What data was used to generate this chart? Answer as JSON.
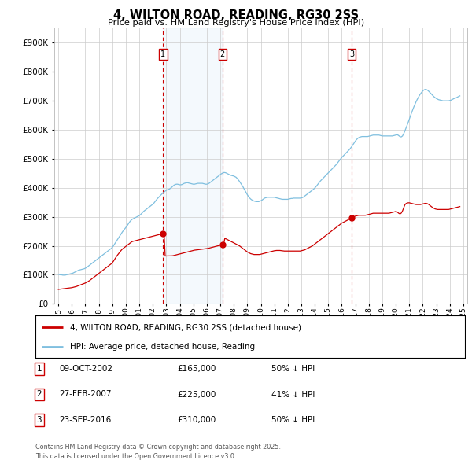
{
  "title": "4, WILTON ROAD, READING, RG30 2SS",
  "subtitle": "Price paid vs. HM Land Registry's House Price Index (HPI)",
  "hpi_color": "#7fbfdf",
  "hpi_fill_color": "#ddeeff",
  "price_color": "#cc0000",
  "vline_color": "#cc0000",
  "ylim": [
    0,
    950000
  ],
  "yticks": [
    0,
    100000,
    200000,
    300000,
    400000,
    500000,
    600000,
    700000,
    800000,
    900000
  ],
  "xlim_start": 1994.7,
  "xlim_end": 2025.3,
  "legend_entry1": "4, WILTON ROAD, READING, RG30 2SS (detached house)",
  "legend_entry2": "HPI: Average price, detached house, Reading",
  "transactions": [
    {
      "num": 1,
      "date": "09-OCT-2002",
      "price": "£165,000",
      "hpi": "50% ↓ HPI",
      "year": 2002.77
    },
    {
      "num": 2,
      "date": "27-FEB-2007",
      "price": "£225,000",
      "hpi": "41% ↓ HPI",
      "year": 2007.16
    },
    {
      "num": 3,
      "date": "23-SEP-2016",
      "price": "£310,000",
      "hpi": "50% ↓ HPI",
      "year": 2016.73
    }
  ],
  "footer": "Contains HM Land Registry data © Crown copyright and database right 2025.\nThis data is licensed under the Open Government Licence v3.0.",
  "hpi_data_x": [
    1995.0,
    1995.083,
    1995.167,
    1995.25,
    1995.333,
    1995.417,
    1995.5,
    1995.583,
    1995.667,
    1995.75,
    1995.833,
    1995.917,
    1996.0,
    1996.083,
    1996.167,
    1996.25,
    1996.333,
    1996.417,
    1996.5,
    1996.583,
    1996.667,
    1996.75,
    1996.833,
    1996.917,
    1997.0,
    1997.083,
    1997.167,
    1997.25,
    1997.333,
    1997.417,
    1997.5,
    1997.583,
    1997.667,
    1997.75,
    1997.833,
    1997.917,
    1998.0,
    1998.083,
    1998.167,
    1998.25,
    1998.333,
    1998.417,
    1998.5,
    1998.583,
    1998.667,
    1998.75,
    1998.833,
    1998.917,
    1999.0,
    1999.083,
    1999.167,
    1999.25,
    1999.333,
    1999.417,
    1999.5,
    1999.583,
    1999.667,
    1999.75,
    1999.833,
    1999.917,
    2000.0,
    2000.083,
    2000.167,
    2000.25,
    2000.333,
    2000.417,
    2000.5,
    2000.583,
    2000.667,
    2000.75,
    2000.833,
    2000.917,
    2001.0,
    2001.083,
    2001.167,
    2001.25,
    2001.333,
    2001.417,
    2001.5,
    2001.583,
    2001.667,
    2001.75,
    2001.833,
    2001.917,
    2002.0,
    2002.083,
    2002.167,
    2002.25,
    2002.333,
    2002.417,
    2002.5,
    2002.583,
    2002.667,
    2002.75,
    2002.833,
    2002.917,
    2003.0,
    2003.083,
    2003.167,
    2003.25,
    2003.333,
    2003.417,
    2003.5,
    2003.583,
    2003.667,
    2003.75,
    2003.833,
    2003.917,
    2004.0,
    2004.083,
    2004.167,
    2004.25,
    2004.333,
    2004.417,
    2004.5,
    2004.583,
    2004.667,
    2004.75,
    2004.833,
    2004.917,
    2005.0,
    2005.083,
    2005.167,
    2005.25,
    2005.333,
    2005.417,
    2005.5,
    2005.583,
    2005.667,
    2005.75,
    2005.833,
    2005.917,
    2006.0,
    2006.083,
    2006.167,
    2006.25,
    2006.333,
    2006.417,
    2006.5,
    2006.583,
    2006.667,
    2006.75,
    2006.833,
    2006.917,
    2007.0,
    2007.083,
    2007.167,
    2007.25,
    2007.333,
    2007.417,
    2007.5,
    2007.583,
    2007.667,
    2007.75,
    2007.833,
    2007.917,
    2008.0,
    2008.083,
    2008.167,
    2008.25,
    2008.333,
    2008.417,
    2008.5,
    2008.583,
    2008.667,
    2008.75,
    2008.833,
    2008.917,
    2009.0,
    2009.083,
    2009.167,
    2009.25,
    2009.333,
    2009.417,
    2009.5,
    2009.583,
    2009.667,
    2009.75,
    2009.833,
    2009.917,
    2010.0,
    2010.083,
    2010.167,
    2010.25,
    2010.333,
    2010.417,
    2010.5,
    2010.583,
    2010.667,
    2010.75,
    2010.833,
    2010.917,
    2011.0,
    2011.083,
    2011.167,
    2011.25,
    2011.333,
    2011.417,
    2011.5,
    2011.583,
    2011.667,
    2011.75,
    2011.833,
    2011.917,
    2012.0,
    2012.083,
    2012.167,
    2012.25,
    2012.333,
    2012.417,
    2012.5,
    2012.583,
    2012.667,
    2012.75,
    2012.833,
    2012.917,
    2013.0,
    2013.083,
    2013.167,
    2013.25,
    2013.333,
    2013.417,
    2013.5,
    2013.583,
    2013.667,
    2013.75,
    2013.833,
    2013.917,
    2014.0,
    2014.083,
    2014.167,
    2014.25,
    2014.333,
    2014.417,
    2014.5,
    2014.583,
    2014.667,
    2014.75,
    2014.833,
    2014.917,
    2015.0,
    2015.083,
    2015.167,
    2015.25,
    2015.333,
    2015.417,
    2015.5,
    2015.583,
    2015.667,
    2015.75,
    2015.833,
    2015.917,
    2016.0,
    2016.083,
    2016.167,
    2016.25,
    2016.333,
    2016.417,
    2016.5,
    2016.583,
    2016.667,
    2016.75,
    2016.833,
    2016.917,
    2017.0,
    2017.083,
    2017.167,
    2017.25,
    2017.333,
    2017.417,
    2017.5,
    2017.583,
    2017.667,
    2017.75,
    2017.833,
    2017.917,
    2018.0,
    2018.083,
    2018.167,
    2018.25,
    2018.333,
    2018.417,
    2018.5,
    2018.583,
    2018.667,
    2018.75,
    2018.833,
    2018.917,
    2019.0,
    2019.083,
    2019.167,
    2019.25,
    2019.333,
    2019.417,
    2019.5,
    2019.583,
    2019.667,
    2019.75,
    2019.833,
    2019.917,
    2020.0,
    2020.083,
    2020.167,
    2020.25,
    2020.333,
    2020.417,
    2020.5,
    2020.583,
    2020.667,
    2020.75,
    2020.833,
    2020.917,
    2021.0,
    2021.083,
    2021.167,
    2021.25,
    2021.333,
    2021.417,
    2021.5,
    2021.583,
    2021.667,
    2021.75,
    2021.833,
    2021.917,
    2022.0,
    2022.083,
    2022.167,
    2022.25,
    2022.333,
    2022.417,
    2022.5,
    2022.583,
    2022.667,
    2022.75,
    2022.833,
    2022.917,
    2023.0,
    2023.083,
    2023.167,
    2023.25,
    2023.333,
    2023.417,
    2023.5,
    2023.583,
    2023.667,
    2023.75,
    2023.833,
    2023.917,
    2024.0,
    2024.083,
    2024.167,
    2024.25,
    2024.333,
    2024.417,
    2024.5,
    2024.583,
    2024.667,
    2024.75
  ],
  "hpi_data_y": [
    102000,
    101000,
    100000,
    100000,
    99000,
    99000,
    99000,
    100000,
    101000,
    102000,
    103000,
    104000,
    105000,
    106000,
    108000,
    110000,
    112000,
    114000,
    116000,
    117000,
    118000,
    119000,
    120000,
    121000,
    123000,
    125000,
    128000,
    131000,
    134000,
    137000,
    140000,
    143000,
    146000,
    149000,
    152000,
    155000,
    158000,
    161000,
    164000,
    167000,
    170000,
    173000,
    176000,
    179000,
    182000,
    185000,
    188000,
    191000,
    195000,
    200000,
    206000,
    212000,
    218000,
    224000,
    230000,
    236000,
    242000,
    248000,
    253000,
    258000,
    263000,
    268000,
    274000,
    280000,
    285000,
    289000,
    292000,
    294000,
    296000,
    298000,
    300000,
    302000,
    304000,
    307000,
    311000,
    315000,
    319000,
    322000,
    325000,
    328000,
    331000,
    334000,
    337000,
    340000,
    343000,
    347000,
    352000,
    357000,
    362000,
    366000,
    370000,
    374000,
    378000,
    382000,
    385000,
    388000,
    391000,
    393000,
    394000,
    396000,
    399000,
    402000,
    406000,
    409000,
    411000,
    412000,
    412000,
    411000,
    410000,
    410000,
    411000,
    413000,
    415000,
    416000,
    417000,
    417000,
    416000,
    415000,
    414000,
    413000,
    412000,
    412000,
    413000,
    414000,
    415000,
    415000,
    415000,
    415000,
    415000,
    414000,
    413000,
    412000,
    412000,
    413000,
    415000,
    418000,
    421000,
    424000,
    427000,
    430000,
    433000,
    436000,
    439000,
    442000,
    445000,
    448000,
    450000,
    452000,
    452000,
    451000,
    449000,
    447000,
    445000,
    443000,
    442000,
    441000,
    440000,
    438000,
    436000,
    432000,
    427000,
    422000,
    416000,
    410000,
    404000,
    397000,
    390000,
    383000,
    376000,
    370000,
    365000,
    361000,
    358000,
    356000,
    354000,
    353000,
    352000,
    352000,
    352000,
    353000,
    355000,
    357000,
    360000,
    363000,
    365000,
    366000,
    367000,
    367000,
    367000,
    367000,
    367000,
    367000,
    367000,
    366000,
    365000,
    364000,
    363000,
    362000,
    361000,
    360000,
    360000,
    360000,
    360000,
    360000,
    360000,
    361000,
    362000,
    363000,
    363000,
    364000,
    364000,
    364000,
    364000,
    364000,
    364000,
    364000,
    365000,
    366000,
    368000,
    371000,
    374000,
    377000,
    380000,
    383000,
    386000,
    389000,
    392000,
    395000,
    399000,
    403000,
    408000,
    413000,
    418000,
    423000,
    427000,
    431000,
    435000,
    439000,
    443000,
    447000,
    451000,
    455000,
    459000,
    463000,
    467000,
    471000,
    475000,
    479000,
    484000,
    489000,
    494000,
    499000,
    504000,
    508000,
    512000,
    516000,
    520000,
    524000,
    528000,
    532000,
    537000,
    542000,
    548000,
    554000,
    560000,
    565000,
    569000,
    572000,
    574000,
    575000,
    576000,
    576000,
    576000,
    576000,
    576000,
    576000,
    577000,
    578000,
    579000,
    580000,
    581000,
    581000,
    581000,
    581000,
    581000,
    581000,
    580000,
    579000,
    578000,
    578000,
    578000,
    578000,
    578000,
    578000,
    578000,
    578000,
    578000,
    578000,
    579000,
    580000,
    581000,
    582000,
    581000,
    578000,
    575000,
    575000,
    578000,
    585000,
    594000,
    604000,
    614000,
    624000,
    635000,
    646000,
    657000,
    667000,
    677000,
    686000,
    695000,
    703000,
    710000,
    717000,
    723000,
    728000,
    733000,
    736000,
    738000,
    738000,
    736000,
    733000,
    729000,
    725000,
    721000,
    717000,
    713000,
    710000,
    707000,
    705000,
    703000,
    702000,
    701000,
    700000,
    699000,
    699000,
    699000,
    699000,
    699000,
    699000,
    700000,
    701000,
    703000,
    705000,
    707000,
    708000,
    710000,
    712000,
    714000,
    716000
  ],
  "price_data_x": [
    1995.0,
    1995.083,
    1995.167,
    1995.25,
    1995.333,
    1995.417,
    1995.5,
    1995.583,
    1995.667,
    1995.75,
    1995.833,
    1995.917,
    1996.0,
    1996.083,
    1996.167,
    1996.25,
    1996.333,
    1996.417,
    1996.5,
    1996.583,
    1996.667,
    1996.75,
    1996.833,
    1996.917,
    1997.0,
    1997.083,
    1997.167,
    1997.25,
    1997.333,
    1997.417,
    1997.5,
    1997.583,
    1997.667,
    1997.75,
    1997.833,
    1997.917,
    1998.0,
    1998.083,
    1998.167,
    1998.25,
    1998.333,
    1998.417,
    1998.5,
    1998.583,
    1998.667,
    1998.75,
    1998.833,
    1998.917,
    1999.0,
    1999.083,
    1999.167,
    1999.25,
    1999.333,
    1999.417,
    1999.5,
    1999.583,
    1999.667,
    1999.75,
    1999.833,
    1999.917,
    2000.0,
    2000.083,
    2000.167,
    2000.25,
    2000.333,
    2000.417,
    2000.5,
    2000.583,
    2000.667,
    2000.75,
    2000.833,
    2000.917,
    2001.0,
    2001.083,
    2001.167,
    2001.25,
    2001.333,
    2001.417,
    2001.5,
    2001.583,
    2001.667,
    2001.75,
    2001.833,
    2001.917,
    2002.0,
    2002.083,
    2002.167,
    2002.25,
    2002.333,
    2002.417,
    2002.5,
    2002.583,
    2002.667,
    2002.75,
    2002.833,
    2002.917,
    2003.0,
    2003.083,
    2003.167,
    2003.25,
    2003.333,
    2003.417,
    2003.5,
    2003.583,
    2003.667,
    2003.75,
    2003.833,
    2003.917,
    2004.0,
    2004.083,
    2004.167,
    2004.25,
    2004.333,
    2004.417,
    2004.5,
    2004.583,
    2004.667,
    2004.75,
    2004.833,
    2004.917,
    2005.0,
    2005.083,
    2005.167,
    2005.25,
    2005.333,
    2005.417,
    2005.5,
    2005.583,
    2005.667,
    2005.75,
    2005.833,
    2005.917,
    2006.0,
    2006.083,
    2006.167,
    2006.25,
    2006.333,
    2006.417,
    2006.5,
    2006.583,
    2006.667,
    2006.75,
    2006.833,
    2006.917,
    2007.0,
    2007.083,
    2007.167,
    2007.25,
    2007.333,
    2007.417,
    2007.5,
    2007.583,
    2007.667,
    2007.75,
    2007.833,
    2007.917,
    2008.0,
    2008.083,
    2008.167,
    2008.25,
    2008.333,
    2008.417,
    2008.5,
    2008.583,
    2008.667,
    2008.75,
    2008.833,
    2008.917,
    2009.0,
    2009.083,
    2009.167,
    2009.25,
    2009.333,
    2009.417,
    2009.5,
    2009.583,
    2009.667,
    2009.75,
    2009.833,
    2009.917,
    2010.0,
    2010.083,
    2010.167,
    2010.25,
    2010.333,
    2010.417,
    2010.5,
    2010.583,
    2010.667,
    2010.75,
    2010.833,
    2010.917,
    2011.0,
    2011.083,
    2011.167,
    2011.25,
    2011.333,
    2011.417,
    2011.5,
    2011.583,
    2011.667,
    2011.75,
    2011.833,
    2011.917,
    2012.0,
    2012.083,
    2012.167,
    2012.25,
    2012.333,
    2012.417,
    2012.5,
    2012.583,
    2012.667,
    2012.75,
    2012.833,
    2012.917,
    2013.0,
    2013.083,
    2013.167,
    2013.25,
    2013.333,
    2013.417,
    2013.5,
    2013.583,
    2013.667,
    2013.75,
    2013.833,
    2013.917,
    2014.0,
    2014.083,
    2014.167,
    2014.25,
    2014.333,
    2014.417,
    2014.5,
    2014.583,
    2014.667,
    2014.75,
    2014.833,
    2014.917,
    2015.0,
    2015.083,
    2015.167,
    2015.25,
    2015.333,
    2015.417,
    2015.5,
    2015.583,
    2015.667,
    2015.75,
    2015.833,
    2015.917,
    2016.0,
    2016.083,
    2016.167,
    2016.25,
    2016.333,
    2016.417,
    2016.5,
    2016.583,
    2016.667,
    2016.75,
    2016.833,
    2016.917,
    2017.0,
    2017.083,
    2017.167,
    2017.25,
    2017.333,
    2017.417,
    2017.5,
    2017.583,
    2017.667,
    2017.75,
    2017.833,
    2017.917,
    2018.0,
    2018.083,
    2018.167,
    2018.25,
    2018.333,
    2018.417,
    2018.5,
    2018.583,
    2018.667,
    2018.75,
    2018.833,
    2018.917,
    2019.0,
    2019.083,
    2019.167,
    2019.25,
    2019.333,
    2019.417,
    2019.5,
    2019.583,
    2019.667,
    2019.75,
    2019.833,
    2019.917,
    2020.0,
    2020.083,
    2020.167,
    2020.25,
    2020.333,
    2020.417,
    2020.5,
    2020.583,
    2020.667,
    2020.75,
    2020.833,
    2020.917,
    2021.0,
    2021.083,
    2021.167,
    2021.25,
    2021.333,
    2021.417,
    2021.5,
    2021.583,
    2021.667,
    2021.75,
    2021.833,
    2021.917,
    2022.0,
    2022.083,
    2022.167,
    2022.25,
    2022.333,
    2022.417,
    2022.5,
    2022.583,
    2022.667,
    2022.75,
    2022.833,
    2022.917,
    2023.0,
    2023.083,
    2023.167,
    2023.25,
    2023.333,
    2023.417,
    2023.5,
    2023.583,
    2023.667,
    2023.75,
    2023.833,
    2023.917,
    2024.0,
    2024.083,
    2024.167,
    2024.25,
    2024.333,
    2024.417,
    2024.5,
    2024.583,
    2024.667,
    2024.75
  ],
  "price_data_y": [
    50000,
    50500,
    51000,
    51500,
    52000,
    52500,
    53000,
    53500,
    54000,
    54500,
    55000,
    55500,
    56000,
    57000,
    58000,
    59000,
    60000,
    61500,
    63000,
    64500,
    66000,
    67500,
    69000,
    70500,
    72000,
    74000,
    76000,
    78500,
    81000,
    84000,
    87000,
    90000,
    93000,
    96000,
    99000,
    102000,
    105000,
    108000,
    111000,
    114000,
    117000,
    120000,
    123000,
    126000,
    129000,
    132000,
    135000,
    138000,
    142000,
    147000,
    153000,
    159000,
    165000,
    170000,
    175000,
    180000,
    185000,
    189000,
    192000,
    195000,
    198000,
    201000,
    204000,
    207000,
    210000,
    213000,
    215000,
    216000,
    217000,
    218000,
    219000,
    220000,
    221000,
    222000,
    223000,
    224000,
    225000,
    226000,
    227000,
    228000,
    229000,
    230000,
    231000,
    232000,
    233000,
    234000,
    235000,
    236000,
    237000,
    238000,
    239000,
    240000,
    241000,
    242000,
    243000,
    165000,
    165000,
    165100,
    165200,
    165300,
    165400,
    165500,
    166000,
    167000,
    168000,
    169000,
    170000,
    171000,
    172000,
    173000,
    174000,
    175000,
    176000,
    177000,
    178000,
    179000,
    180000,
    181000,
    182000,
    183000,
    184000,
    185000,
    185500,
    186000,
    186500,
    187000,
    187500,
    188000,
    188500,
    189000,
    189500,
    190000,
    190500,
    191000,
    192000,
    193000,
    194000,
    195000,
    196000,
    197000,
    198000,
    199000,
    200000,
    201000,
    202000,
    203000,
    204000,
    205000,
    225000,
    224000,
    222000,
    220000,
    218000,
    216000,
    214000,
    212000,
    210000,
    208000,
    206000,
    204000,
    202000,
    200000,
    197000,
    194000,
    191000,
    188000,
    185000,
    182000,
    179000,
    177000,
    175000,
    173000,
    172000,
    171000,
    170000,
    170000,
    170000,
    170000,
    170000,
    170000,
    171000,
    172000,
    173000,
    174000,
    175000,
    176000,
    177000,
    178000,
    179000,
    180000,
    181000,
    182000,
    183000,
    183500,
    184000,
    184000,
    184000,
    184000,
    183500,
    183000,
    182500,
    182000,
    182000,
    182000,
    182000,
    182000,
    182000,
    182000,
    182000,
    182000,
    182000,
    182000,
    182000,
    182000,
    182000,
    182000,
    183000,
    184000,
    185000,
    186000,
    188000,
    190000,
    192000,
    194000,
    196000,
    198000,
    200000,
    203000,
    206000,
    209000,
    212000,
    215000,
    218000,
    221000,
    224000,
    227000,
    230000,
    233000,
    236000,
    239000,
    242000,
    245000,
    248000,
    251000,
    254000,
    257000,
    260000,
    263000,
    266000,
    269000,
    272000,
    275000,
    278000,
    280000,
    282000,
    284000,
    286000,
    288000,
    290000,
    292000,
    294000,
    296000,
    298000,
    300000,
    302000,
    303000,
    304000,
    305000,
    305000,
    305000,
    305000,
    305000,
    305000,
    305000,
    306000,
    307000,
    308000,
    309000,
    310000,
    311000,
    312000,
    312000,
    312000,
    312000,
    312000,
    312000,
    312000,
    312000,
    312000,
    312000,
    312000,
    312000,
    312000,
    312000,
    312000,
    313000,
    314000,
    315000,
    316000,
    317000,
    318000,
    317000,
    314000,
    311000,
    310000,
    313000,
    320000,
    330000,
    340000,
    345000,
    347000,
    348000,
    348000,
    347000,
    346000,
    345000,
    344000,
    343000,
    342000,
    342000,
    342000,
    342000,
    342000,
    343000,
    344000,
    345000,
    346000,
    346000,
    345000,
    343000,
    340000,
    337000,
    334000,
    331000,
    329000,
    327000,
    326000,
    325000,
    325000,
    325000,
    325000,
    325000,
    325000,
    325000,
    325000,
    325000,
    325000,
    325000,
    326000,
    327000,
    328000,
    329000,
    330000,
    331000,
    332000,
    333000,
    334000,
    335000
  ]
}
